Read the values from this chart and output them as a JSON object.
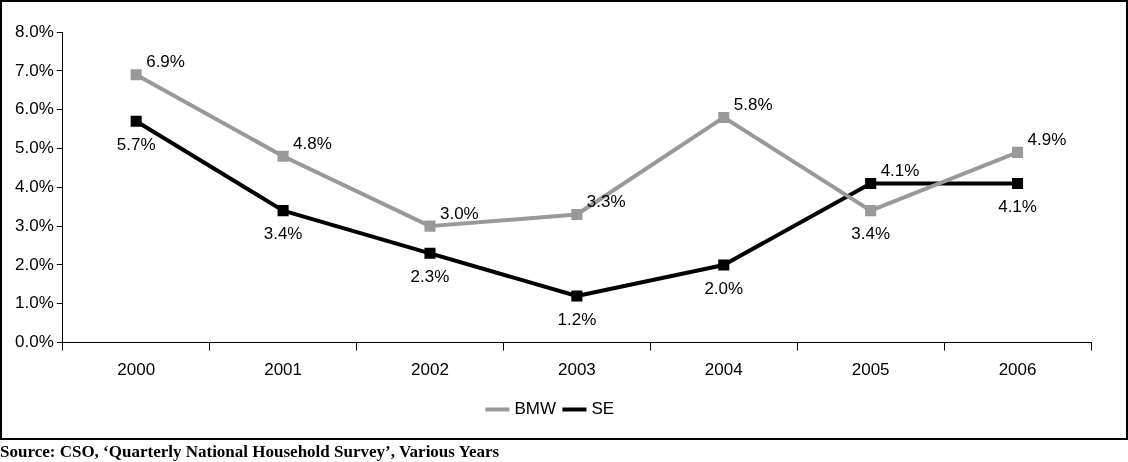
{
  "chart_data": {
    "type": "line",
    "categories": [
      "2000",
      "2001",
      "2002",
      "2003",
      "2004",
      "2005",
      "2006"
    ],
    "series": [
      {
        "name": "BMW",
        "color": "#999999",
        "values": [
          6.9,
          4.8,
          3.0,
          3.3,
          5.8,
          3.4,
          4.9
        ],
        "value_labels": [
          "6.9%",
          "4.8%",
          "3.0%",
          "3.3%",
          "5.8%",
          "3.4%",
          "4.9%"
        ]
      },
      {
        "name": "SE",
        "color": "#000000",
        "values": [
          5.7,
          3.4,
          2.3,
          1.2,
          2.0,
          4.1,
          4.1
        ],
        "value_labels": [
          "5.7%",
          "3.4%",
          "2.3%",
          "1.2%",
          "2.0%",
          "4.1%",
          "4.1%"
        ]
      }
    ],
    "ylim": [
      0,
      8
    ],
    "yticks": [
      {
        "value": 0,
        "label": "0.0%"
      },
      {
        "value": 1,
        "label": "1.0%"
      },
      {
        "value": 2,
        "label": "2.0%"
      },
      {
        "value": 3,
        "label": "3.0%"
      },
      {
        "value": 4,
        "label": "4.0%"
      },
      {
        "value": 5,
        "label": "5.0%"
      },
      {
        "value": 6,
        "label": "6.0%"
      },
      {
        "value": 7,
        "label": "7.0%"
      },
      {
        "value": 8,
        "label": "8.0%"
      }
    ],
    "grid": false,
    "legend": "bottom",
    "marker": "square",
    "line_style": "solid",
    "annotations": [
      "Source: CSO, ‘Quarterly National Household Survey’, Various Years"
    ]
  }
}
